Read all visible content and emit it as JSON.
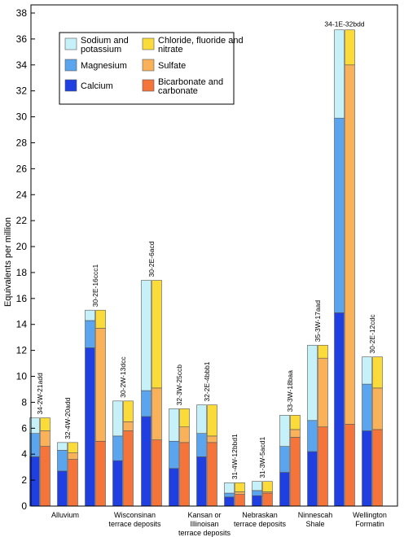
{
  "chart_data": {
    "type": "bar",
    "title": "",
    "xlabel": "",
    "ylabel": "Equivalents per million",
    "ylim": [
      0,
      40
    ],
    "yticks": [
      0,
      2,
      4,
      6,
      8,
      10,
      12,
      14,
      16,
      18,
      20,
      22,
      24,
      26,
      28,
      30,
      32,
      34,
      36,
      38
    ],
    "grid": false,
    "legend_position": "top-left",
    "stacked": true,
    "cation_series": [
      {
        "name": "Calcium",
        "color": "#1f3fe0"
      },
      {
        "name": "Magnesium",
        "color": "#5ba4ee"
      },
      {
        "name": "Sodium and potassium",
        "color": "#c6f1f9"
      }
    ],
    "anion_series": [
      {
        "name": "Bicarbonate and carbonate",
        "color": "#f5743a"
      },
      {
        "name": "Sulfate",
        "color": "#f9b25a"
      },
      {
        "name": "Chloride, fluoride and nitrate",
        "color": "#fbdb3a"
      }
    ],
    "legend": [
      {
        "lines": [
          "Sodium and",
          "potassium"
        ],
        "color": "#c6f1f9"
      },
      {
        "lines": [
          "Chloride, fluoride and",
          "nitrate"
        ],
        "color": "#fbdb3a"
      },
      {
        "lines": [
          "Magnesium"
        ],
        "color": "#5ba4ee"
      },
      {
        "lines": [
          "Sulfate"
        ],
        "color": "#f9b25a"
      },
      {
        "lines": [
          "Calcium"
        ],
        "color": "#1f3fe0"
      },
      {
        "lines": [
          "Bicarbonate and",
          "carbonate"
        ],
        "color": "#f5743a"
      }
    ],
    "groups": [
      {
        "lines": [
          "Alluvium"
        ],
        "wells": [
          0,
          1
        ]
      },
      {
        "lines": [
          "Wisconsinan",
          "terrace deposits"
        ],
        "wells": [
          2,
          3,
          4
        ]
      },
      {
        "lines": [
          "Kansan or",
          "Illinoisan",
          "terrace deposits"
        ],
        "wells": [
          5,
          6
        ]
      },
      {
        "lines": [
          "Nebraskan",
          "terrace deposits"
        ],
        "wells": [
          7,
          8
        ]
      },
      {
        "lines": [
          "Ninnescah",
          "Shale"
        ],
        "wells": [
          9,
          10
        ]
      },
      {
        "lines": [
          "Wellington",
          "Formatin"
        ],
        "wells": [
          11,
          12
        ]
      }
    ],
    "wells": [
      {
        "label": "34-2W-21add",
        "cations": [
          3.8,
          1.8,
          1.2
        ],
        "anions": [
          4.6,
          1.2,
          1.0
        ]
      },
      {
        "label": "32-4W-20add",
        "cations": [
          2.7,
          1.6,
          0.6
        ],
        "anions": [
          3.6,
          0.5,
          0.8
        ]
      },
      {
        "label": "30-2E-16ccc1",
        "cations": [
          12.2,
          2.1,
          0.8
        ],
        "anions": [
          5.0,
          8.7,
          1.4
        ]
      },
      {
        "label": "30-2W-13dcc",
        "cations": [
          3.5,
          1.9,
          2.7
        ],
        "anions": [
          5.8,
          0.7,
          1.6
        ]
      },
      {
        "label": "30-2E-6acd",
        "cations": [
          6.9,
          2.0,
          8.5
        ],
        "anions": [
          5.1,
          4.0,
          8.3
        ]
      },
      {
        "label": "32-3W-25ccb",
        "cations": [
          2.9,
          2.1,
          2.5
        ],
        "anions": [
          4.9,
          1.2,
          1.4
        ]
      },
      {
        "label": "32-2E-4bbb1",
        "cations": [
          3.8,
          1.8,
          2.2
        ],
        "anions": [
          4.9,
          0.5,
          2.4
        ]
      },
      {
        "label": "31-4W-12bbd1",
        "cations": [
          0.7,
          0.3,
          0.8
        ],
        "anions": [
          0.9,
          0.2,
          0.7
        ]
      },
      {
        "label": "31-3W-5acd1",
        "cations": [
          0.8,
          0.4,
          0.7
        ],
        "anions": [
          1.0,
          0.1,
          0.8
        ]
      },
      {
        "label": "33-3W-18baa",
        "cations": [
          2.6,
          2.0,
          2.4
        ],
        "anions": [
          5.3,
          0.6,
          1.1
        ]
      },
      {
        "label": "35-3W-17aad",
        "cations": [
          4.2,
          2.4,
          5.8
        ],
        "anions": [
          6.1,
          5.3,
          1.0
        ]
      },
      {
        "label": "34-1E-32bdd",
        "cations": [
          14.9,
          15.0,
          6.8
        ],
        "anions": [
          6.3,
          27.7,
          2.7
        ]
      },
      {
        "label": "30-2E-12cdc",
        "cations": [
          5.8,
          3.6,
          2.1
        ],
        "anions": [
          5.9,
          3.2,
          2.4
        ]
      }
    ]
  }
}
